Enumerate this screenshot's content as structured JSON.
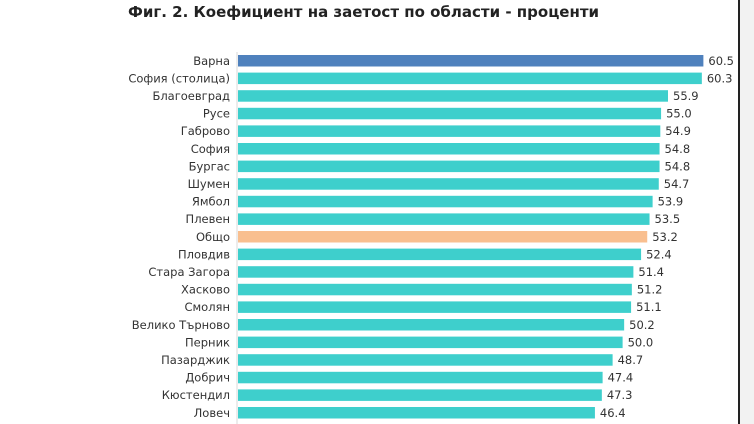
{
  "chart_data": {
    "type": "bar",
    "orientation": "horizontal",
    "title": "Фиг. 2. Коефициент на заетост по области - проценти",
    "categories": [
      "Варна",
      "София (столица)",
      "Благоевград",
      "Русе",
      "Габрово",
      "София",
      "Бургас",
      "Шумен",
      "Ямбол",
      "Плевен",
      "Общо",
      "Пловдив",
      "Стара Загора",
      "Хасково",
      "Смолян",
      "Велико Търново",
      "Перник",
      "Пазарджик",
      "Добрич",
      "Кюстендил",
      "Ловеч"
    ],
    "values": [
      60.5,
      60.3,
      55.9,
      55.0,
      54.9,
      54.8,
      54.8,
      54.7,
      53.9,
      53.5,
      53.2,
      52.4,
      51.4,
      51.2,
      51.1,
      50.2,
      50.0,
      48.7,
      47.4,
      47.3,
      46.4
    ],
    "value_labels": [
      "60.5",
      "60.3",
      "55.9",
      "55.0",
      "54.9",
      "54.8",
      "54.8",
      "54.7",
      "53.9",
      "53.5",
      "53.2",
      "52.4",
      "51.4",
      "51.2",
      "51.1",
      "50.2",
      "50.0",
      "48.7",
      "47.4",
      "47.3",
      "46.4"
    ],
    "xlim": [
      0,
      65
    ],
    "grid": false,
    "legend": "none",
    "colors": {
      "default": "#3ecfcc",
      "highlight_top": "#4f81bd",
      "highlight_total": "#f9bf8f"
    },
    "bar_colors": [
      "highlight_top",
      "default",
      "default",
      "default",
      "default",
      "default",
      "default",
      "default",
      "default",
      "default",
      "highlight_total",
      "default",
      "default",
      "default",
      "default",
      "default",
      "default",
      "default",
      "default",
      "default",
      "default"
    ]
  }
}
